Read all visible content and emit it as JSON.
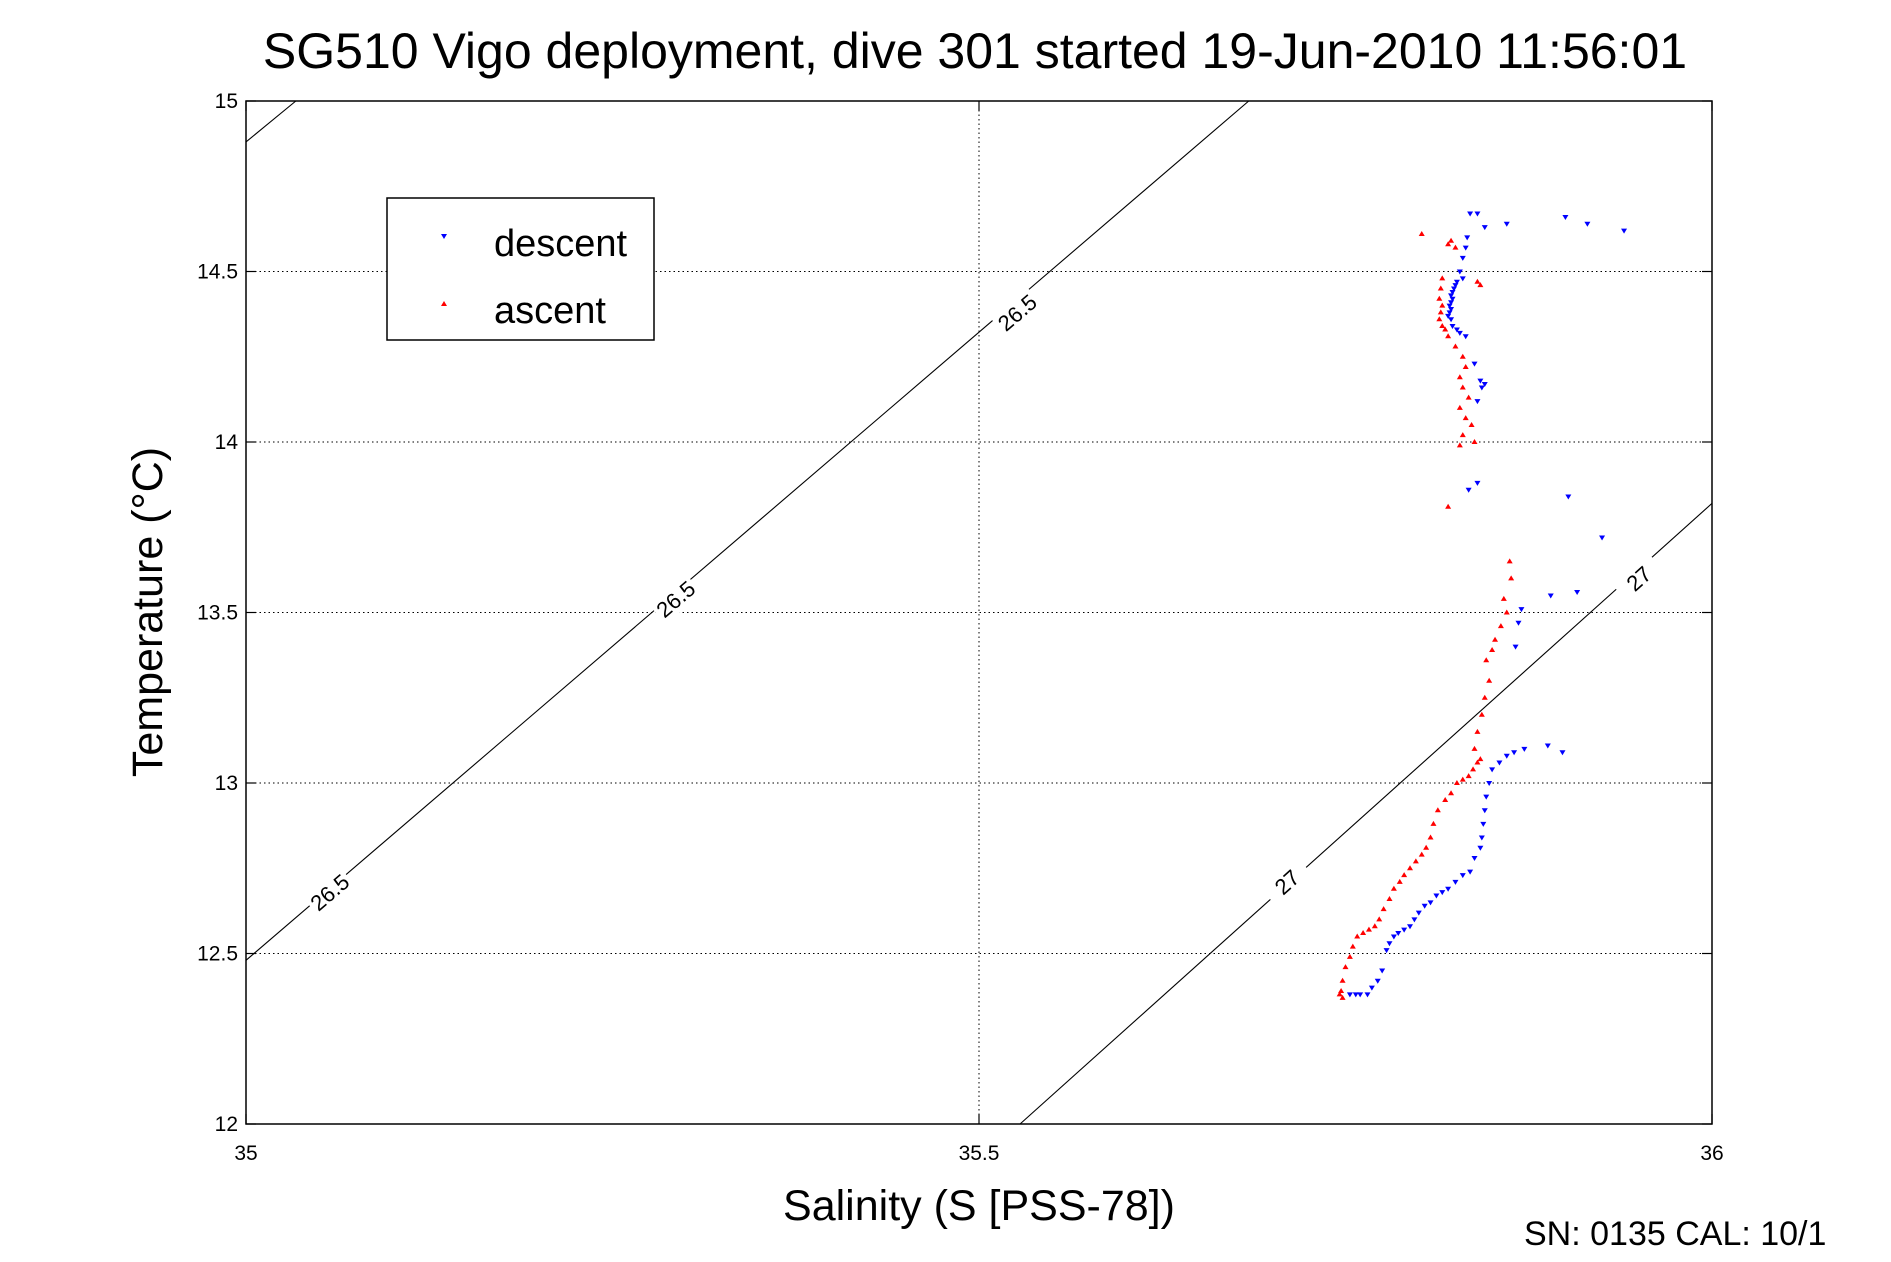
{
  "chart_data": {
    "type": "scatter",
    "title": "SG510 Vigo deployment, dive 301 started 19-Jun-2010 11:56:01",
    "xlabel": "Salinity (S [PSS-78])",
    "ylabel": "Temperature (°C)",
    "xlim": [
      35,
      36
    ],
    "ylim": [
      12,
      15
    ],
    "xticks": [
      "35",
      "35.5",
      "36"
    ],
    "yticks": [
      "12",
      "12.5",
      "13",
      "13.5",
      "14",
      "14.5",
      "15"
    ],
    "grid": true,
    "legend_position": "top-left",
    "footer": "SN: 0135  CAL: 10/1",
    "contours": [
      {
        "label": "26.5",
        "points": [
          [
            35.0,
            14.88
          ],
          [
            35.034,
            15.0
          ]
        ],
        "labels_at": []
      },
      {
        "label": "26.5",
        "points": [
          [
            35.0,
            12.48
          ],
          [
            35.684,
            15.0
          ]
        ],
        "labels_at": [
          [
            35.057,
            12.68
          ],
          [
            35.293,
            13.54
          ],
          [
            35.526,
            14.38
          ]
        ]
      },
      {
        "label": "27",
        "points": [
          [
            35.528,
            12.0
          ],
          [
            36.0,
            13.82
          ]
        ],
        "labels_at": [
          [
            35.71,
            12.71
          ],
          [
            35.95,
            13.6
          ]
        ]
      }
    ],
    "series": [
      {
        "name": "descent",
        "color": "#0000ff",
        "marker": "triangle-down",
        "points": [
          [
            35.86,
            14.64
          ],
          [
            35.9,
            14.66
          ],
          [
            35.915,
            14.64
          ],
          [
            35.94,
            14.62
          ],
          [
            35.84,
            14.67
          ],
          [
            35.835,
            14.67
          ],
          [
            35.845,
            14.63
          ],
          [
            35.833,
            14.6
          ],
          [
            35.832,
            14.57
          ],
          [
            35.83,
            14.54
          ],
          [
            35.828,
            14.5
          ],
          [
            35.83,
            14.48
          ],
          [
            35.826,
            14.47
          ],
          [
            35.825,
            14.46
          ],
          [
            35.824,
            14.45
          ],
          [
            35.823,
            14.44
          ],
          [
            35.822,
            14.43
          ],
          [
            35.823,
            14.42
          ],
          [
            35.822,
            14.41
          ],
          [
            35.821,
            14.4
          ],
          [
            35.822,
            14.39
          ],
          [
            35.821,
            14.38
          ],
          [
            35.82,
            14.37
          ],
          [
            35.822,
            14.36
          ],
          [
            35.823,
            14.34
          ],
          [
            35.826,
            14.33
          ],
          [
            35.828,
            14.32
          ],
          [
            35.832,
            14.31
          ],
          [
            35.838,
            14.23
          ],
          [
            35.842,
            14.18
          ],
          [
            35.843,
            14.16
          ],
          [
            35.845,
            14.17
          ],
          [
            35.84,
            14.12
          ],
          [
            35.84,
            13.88
          ],
          [
            35.834,
            13.86
          ],
          [
            35.902,
            13.84
          ],
          [
            35.925,
            13.72
          ],
          [
            35.908,
            13.56
          ],
          [
            35.89,
            13.55
          ],
          [
            35.87,
            13.51
          ],
          [
            35.868,
            13.47
          ],
          [
            35.866,
            13.4
          ],
          [
            35.888,
            13.11
          ],
          [
            35.898,
            13.09
          ],
          [
            35.872,
            13.1
          ],
          [
            35.865,
            13.09
          ],
          [
            35.86,
            13.08
          ],
          [
            35.855,
            13.06
          ],
          [
            35.85,
            13.04
          ],
          [
            35.848,
            13.0
          ],
          [
            35.846,
            12.96
          ],
          [
            35.845,
            12.92
          ],
          [
            35.844,
            12.88
          ],
          [
            35.843,
            12.84
          ],
          [
            35.842,
            12.81
          ],
          [
            35.838,
            12.78
          ],
          [
            35.835,
            12.74
          ],
          [
            35.83,
            12.73
          ],
          [
            35.825,
            12.71
          ],
          [
            35.82,
            12.69
          ],
          [
            35.816,
            12.68
          ],
          [
            35.812,
            12.67
          ],
          [
            35.808,
            12.65
          ],
          [
            35.804,
            12.64
          ],
          [
            35.8,
            12.62
          ],
          [
            35.797,
            12.6
          ],
          [
            35.794,
            12.58
          ],
          [
            35.79,
            12.57
          ],
          [
            35.786,
            12.56
          ],
          [
            35.783,
            12.55
          ],
          [
            35.78,
            12.53
          ],
          [
            35.778,
            12.51
          ],
          [
            35.775,
            12.45
          ],
          [
            35.772,
            12.42
          ],
          [
            35.768,
            12.4
          ],
          [
            35.765,
            12.38
          ],
          [
            35.76,
            12.38
          ],
          [
            35.757,
            12.38
          ],
          [
            35.753,
            12.38
          ]
        ]
      },
      {
        "name": "ascent",
        "color": "#ff0000",
        "marker": "triangle-up",
        "points": [
          [
            35.802,
            14.61
          ],
          [
            35.82,
            14.58
          ],
          [
            35.822,
            14.59
          ],
          [
            35.825,
            14.57
          ],
          [
            35.84,
            14.47
          ],
          [
            35.842,
            14.46
          ],
          [
            35.816,
            14.48
          ],
          [
            35.815,
            14.45
          ],
          [
            35.814,
            14.42
          ],
          [
            35.816,
            14.4
          ],
          [
            35.815,
            14.38
          ],
          [
            35.814,
            14.36
          ],
          [
            35.816,
            14.34
          ],
          [
            35.818,
            14.33
          ],
          [
            35.82,
            14.31
          ],
          [
            35.825,
            14.28
          ],
          [
            35.83,
            14.25
          ],
          [
            35.832,
            14.22
          ],
          [
            35.828,
            14.19
          ],
          [
            35.83,
            14.16
          ],
          [
            35.834,
            14.13
          ],
          [
            35.828,
            14.1
          ],
          [
            35.832,
            14.07
          ],
          [
            35.836,
            14.05
          ],
          [
            35.83,
            14.02
          ],
          [
            35.838,
            14.0
          ],
          [
            35.828,
            13.99
          ],
          [
            35.82,
            13.81
          ],
          [
            35.862,
            13.65
          ],
          [
            35.863,
            13.6
          ],
          [
            35.858,
            13.54
          ],
          [
            35.86,
            13.5
          ],
          [
            35.856,
            13.46
          ],
          [
            35.852,
            13.42
          ],
          [
            35.85,
            13.39
          ],
          [
            35.846,
            13.36
          ],
          [
            35.848,
            13.3
          ],
          [
            35.845,
            13.25
          ],
          [
            35.843,
            13.2
          ],
          [
            35.84,
            13.15
          ],
          [
            35.838,
            13.1
          ],
          [
            35.842,
            13.07
          ],
          [
            35.84,
            13.06
          ],
          [
            35.837,
            13.04
          ],
          [
            35.834,
            13.02
          ],
          [
            35.83,
            13.01
          ],
          [
            35.826,
            13.0
          ],
          [
            35.822,
            12.97
          ],
          [
            35.818,
            12.95
          ],
          [
            35.813,
            12.92
          ],
          [
            35.81,
            12.88
          ],
          [
            35.808,
            12.84
          ],
          [
            35.805,
            12.81
          ],
          [
            35.802,
            12.79
          ],
          [
            35.798,
            12.77
          ],
          [
            35.794,
            12.75
          ],
          [
            35.79,
            12.73
          ],
          [
            35.787,
            12.71
          ],
          [
            35.783,
            12.69
          ],
          [
            35.78,
            12.66
          ],
          [
            35.776,
            12.63
          ],
          [
            35.773,
            12.6
          ],
          [
            35.77,
            12.58
          ],
          [
            35.766,
            12.57
          ],
          [
            35.762,
            12.56
          ],
          [
            35.758,
            12.55
          ],
          [
            35.755,
            12.52
          ],
          [
            35.753,
            12.49
          ],
          [
            35.75,
            12.46
          ],
          [
            35.748,
            12.42
          ],
          [
            35.747,
            12.39
          ],
          [
            35.746,
            12.38
          ],
          [
            35.748,
            12.37
          ]
        ]
      }
    ]
  }
}
